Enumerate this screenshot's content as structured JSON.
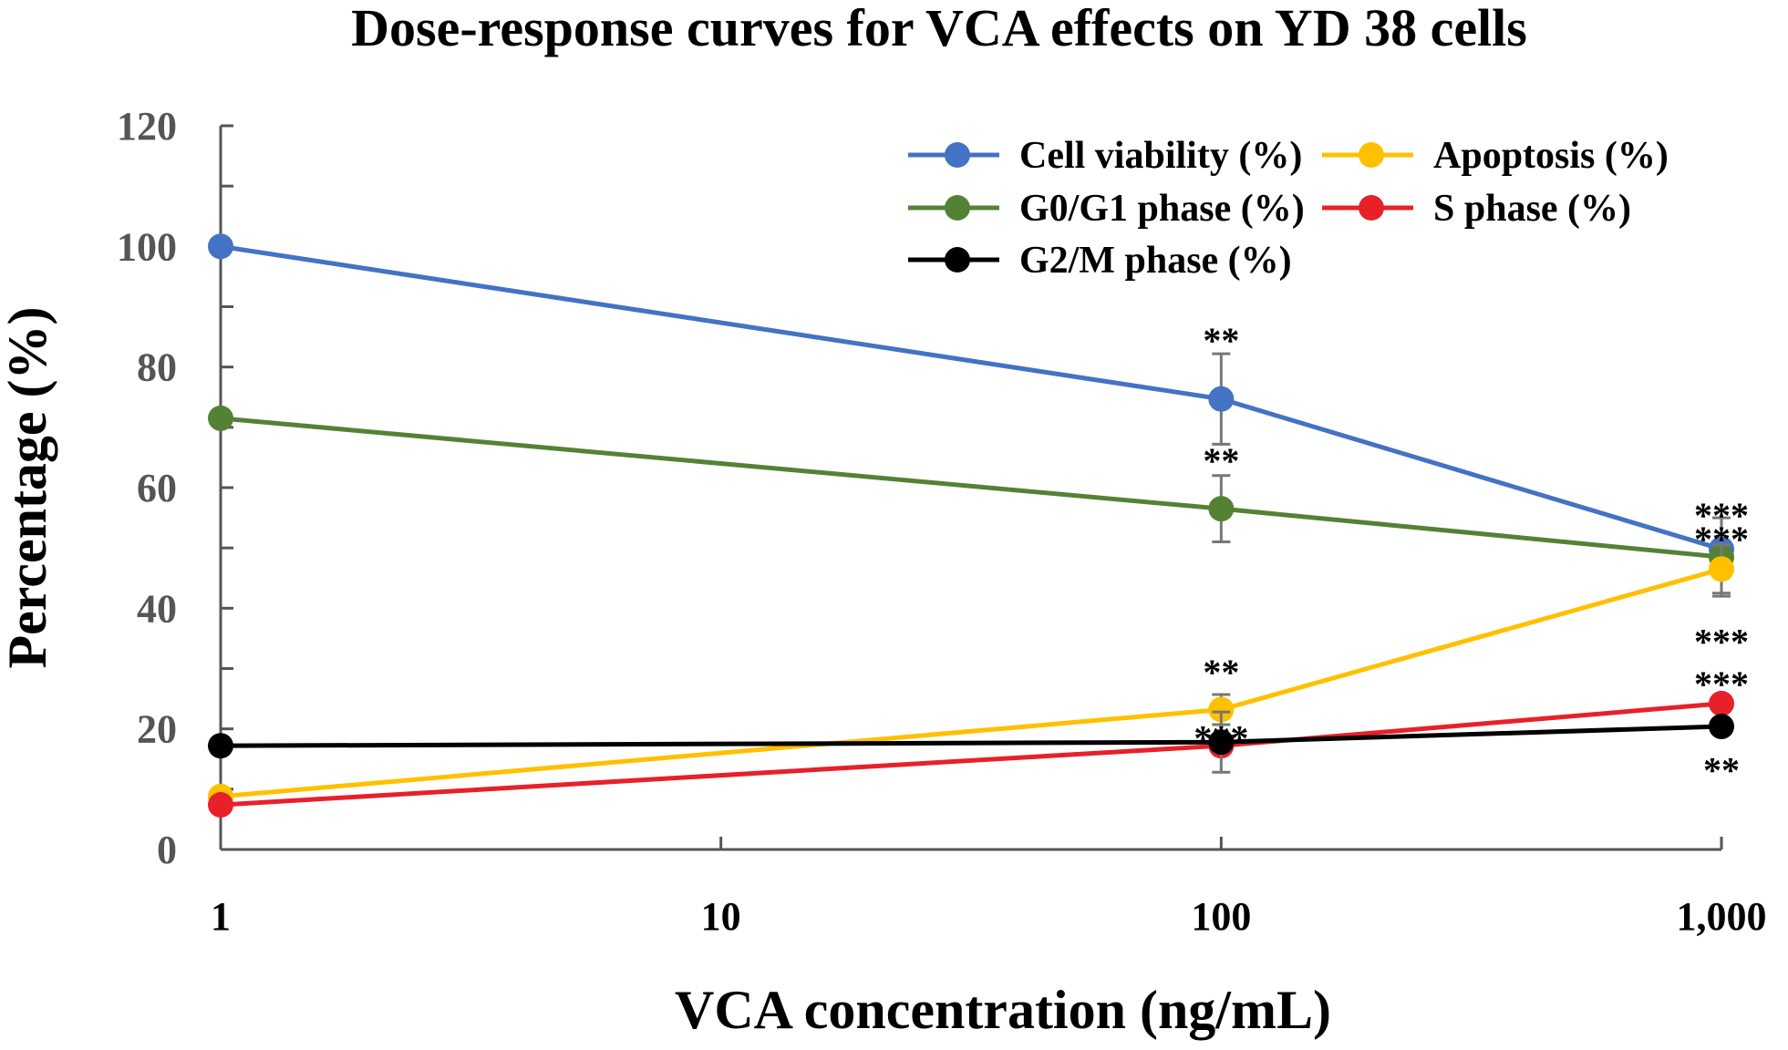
{
  "chart_data": {
    "type": "line",
    "title": "Dose-response curves for VCA effects on YD 38 cells",
    "xlabel": "VCA concentration (ng/mL)",
    "ylabel": "Percentage (%)",
    "x_scale": "log",
    "x": [
      1,
      100,
      1000
    ],
    "xlim": [
      1,
      1000
    ],
    "ylim": [
      0,
      120
    ],
    "xticks": [
      1,
      10,
      100,
      1000
    ],
    "xtick_labels": [
      "1",
      "10",
      "100",
      "1,000"
    ],
    "yticks": [
      0,
      20,
      40,
      60,
      80,
      100,
      120
    ],
    "ytick_labels": [
      "0",
      "20",
      "40",
      "60",
      "80",
      "100",
      "120"
    ],
    "legend_position": "top-right",
    "grid": false,
    "series": [
      {
        "name": "Cell viability (%)",
        "color": "#4472C4",
        "values": [
          100,
          74.7,
          49.8
        ],
        "errors": [
          0,
          7.5,
          0
        ]
      },
      {
        "name": "Apoptosis (%)",
        "color": "#FFC000",
        "values": [
          8.8,
          23.2,
          46.5
        ],
        "errors": [
          0,
          2.5,
          4
        ]
      },
      {
        "name": "G0/G1 phase (%)",
        "color": "#548235",
        "values": [
          71.5,
          56.5,
          48.5
        ],
        "errors": [
          0,
          5.5,
          6.5
        ]
      },
      {
        "name": "S phase (%)",
        "color": "#E8202A",
        "values": [
          7.4,
          17.2,
          24.2
        ],
        "errors": [
          0,
          0,
          0
        ]
      },
      {
        "name": "G2/M phase (%)",
        "color": "#000000",
        "values": [
          17.2,
          17.8,
          20.4
        ],
        "errors": [
          0,
          5,
          0
        ]
      }
    ],
    "annotations": [
      {
        "text": "**",
        "x": 100,
        "y": 84.5
      },
      {
        "text": "**",
        "x": 100,
        "y": 64.5
      },
      {
        "text": "**",
        "x": 100,
        "y": 29.5
      },
      {
        "text": "***",
        "x": 100,
        "y": 18.5
      },
      {
        "text": "***",
        "x": 1000,
        "y": 55.5
      },
      {
        "text": "***",
        "x": 1000,
        "y": 51.5
      },
      {
        "text": "***",
        "x": 1000,
        "y": 34.5
      },
      {
        "text": "***",
        "x": 1000,
        "y": 27.5
      },
      {
        "text": "**",
        "x": 1000,
        "y": 13.2
      }
    ]
  }
}
